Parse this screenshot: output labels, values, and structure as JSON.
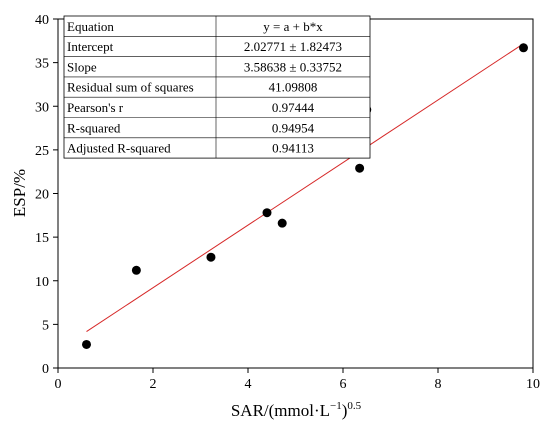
{
  "chart_data": {
    "type": "scatter",
    "xlabel": "SAR/(mmol·L",
    "xlabel_sup1": "−1",
    "xlabel_mid": ")",
    "xlabel_sup2": "0.5",
    "ylabel": "ESP/%",
    "xlim": [
      0,
      10
    ],
    "ylim": [
      0,
      40
    ],
    "xticks": [
      0,
      2,
      4,
      6,
      8,
      10
    ],
    "yticks": [
      0,
      5,
      10,
      15,
      20,
      25,
      30,
      35,
      40
    ],
    "grid": false,
    "points": [
      {
        "x": 0.6,
        "y": 2.7
      },
      {
        "x": 1.65,
        "y": 11.2
      },
      {
        "x": 3.22,
        "y": 12.7
      },
      {
        "x": 4.4,
        "y": 17.8
      },
      {
        "x": 4.72,
        "y": 16.6
      },
      {
        "x": 6.35,
        "y": 22.9
      },
      {
        "x": 6.5,
        "y": 29.6
      },
      {
        "x": 9.8,
        "y": 36.7
      }
    ],
    "fit": {
      "intercept": 2.02771,
      "slope": 3.58638,
      "x_range": [
        0.6,
        9.8
      ],
      "color": "#d62828"
    },
    "stats_table": [
      {
        "label": "Equation",
        "value": "y = a + b*x"
      },
      {
        "label": "Intercept",
        "value": "2.02771 ± 1.82473"
      },
      {
        "label": "Slope",
        "value": "3.58638 ± 0.33752"
      },
      {
        "label": "Residual sum of squares",
        "value": "41.09808"
      },
      {
        "label": "Pearson's r",
        "value": "0.97444"
      },
      {
        "label": "R-squared",
        "value": "0.94954"
      },
      {
        "label": "Adjusted R-squared",
        "value": "0.94113"
      }
    ]
  }
}
